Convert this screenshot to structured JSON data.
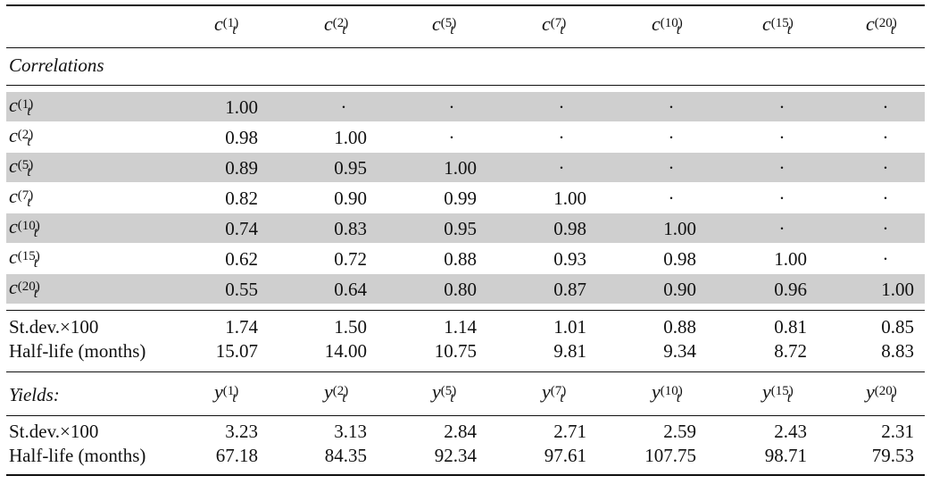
{
  "header": {
    "columns": [
      {
        "base": "c",
        "sub": "t",
        "sup": "(1)"
      },
      {
        "base": "c",
        "sub": "t",
        "sup": "(2)"
      },
      {
        "base": "c",
        "sub": "t",
        "sup": "(5)"
      },
      {
        "base": "c",
        "sub": "t",
        "sup": "(7)"
      },
      {
        "base": "c",
        "sub": "t",
        "sup": "(10)"
      },
      {
        "base": "c",
        "sub": "t",
        "sup": "(15)"
      },
      {
        "base": "c",
        "sub": "t",
        "sup": "(20)"
      }
    ]
  },
  "correlations": {
    "title": "Correlations",
    "rows": [
      {
        "base": "c",
        "sub": "t",
        "sup": "(1)",
        "values": [
          "1.00",
          "·",
          "·",
          "·",
          "·",
          "·",
          "·"
        ]
      },
      {
        "base": "c",
        "sub": "t",
        "sup": "(2)",
        "values": [
          "0.98",
          "1.00",
          "·",
          "·",
          "·",
          "·",
          "·"
        ]
      },
      {
        "base": "c",
        "sub": "t",
        "sup": "(5)",
        "values": [
          "0.89",
          "0.95",
          "1.00",
          "·",
          "·",
          "·",
          "·"
        ]
      },
      {
        "base": "c",
        "sub": "t",
        "sup": "(7)",
        "values": [
          "0.82",
          "0.90",
          "0.99",
          "1.00",
          "·",
          "·",
          "·"
        ]
      },
      {
        "base": "c",
        "sub": "t",
        "sup": "(10)",
        "values": [
          "0.74",
          "0.83",
          "0.95",
          "0.98",
          "1.00",
          "·",
          "·"
        ]
      },
      {
        "base": "c",
        "sub": "t",
        "sup": "(15)",
        "values": [
          "0.62",
          "0.72",
          "0.88",
          "0.93",
          "0.98",
          "1.00",
          "·"
        ]
      },
      {
        "base": "c",
        "sub": "t",
        "sup": "(20)",
        "values": [
          "0.55",
          "0.64",
          "0.80",
          "0.87",
          "0.90",
          "0.96",
          "1.00"
        ]
      }
    ]
  },
  "factor_stats": [
    {
      "label": "St.dev.×100",
      "values": [
        "1.74",
        "1.50",
        "1.14",
        "1.01",
        "0.88",
        "0.81",
        "0.85"
      ]
    },
    {
      "label": "Half-life (months)",
      "values": [
        "15.07",
        "14.00",
        "10.75",
        "9.81",
        "9.34",
        "8.72",
        "8.83"
      ]
    }
  ],
  "yields": {
    "title": "Yields:",
    "columns": [
      {
        "base": "y",
        "sub": "t",
        "sup": "(1)"
      },
      {
        "base": "y",
        "sub": "t",
        "sup": "(2)"
      },
      {
        "base": "y",
        "sub": "t",
        "sup": "(5)"
      },
      {
        "base": "y",
        "sub": "t",
        "sup": "(7)"
      },
      {
        "base": "y",
        "sub": "t",
        "sup": "(10)"
      },
      {
        "base": "y",
        "sub": "t",
        "sup": "(15)"
      },
      {
        "base": "y",
        "sub": "t",
        "sup": "(20)"
      }
    ],
    "stats": [
      {
        "label": "St.dev.×100",
        "values": [
          "3.23",
          "3.13",
          "2.84",
          "2.71",
          "2.59",
          "2.43",
          "2.31"
        ]
      },
      {
        "label": "Half-life (months)",
        "values": [
          "67.18",
          "84.35",
          "92.34",
          "97.61",
          "107.75",
          "98.71",
          "79.53"
        ]
      }
    ]
  },
  "colors": {
    "shade": "#cfcfcf",
    "rule": "#111111",
    "text": "#111111"
  }
}
